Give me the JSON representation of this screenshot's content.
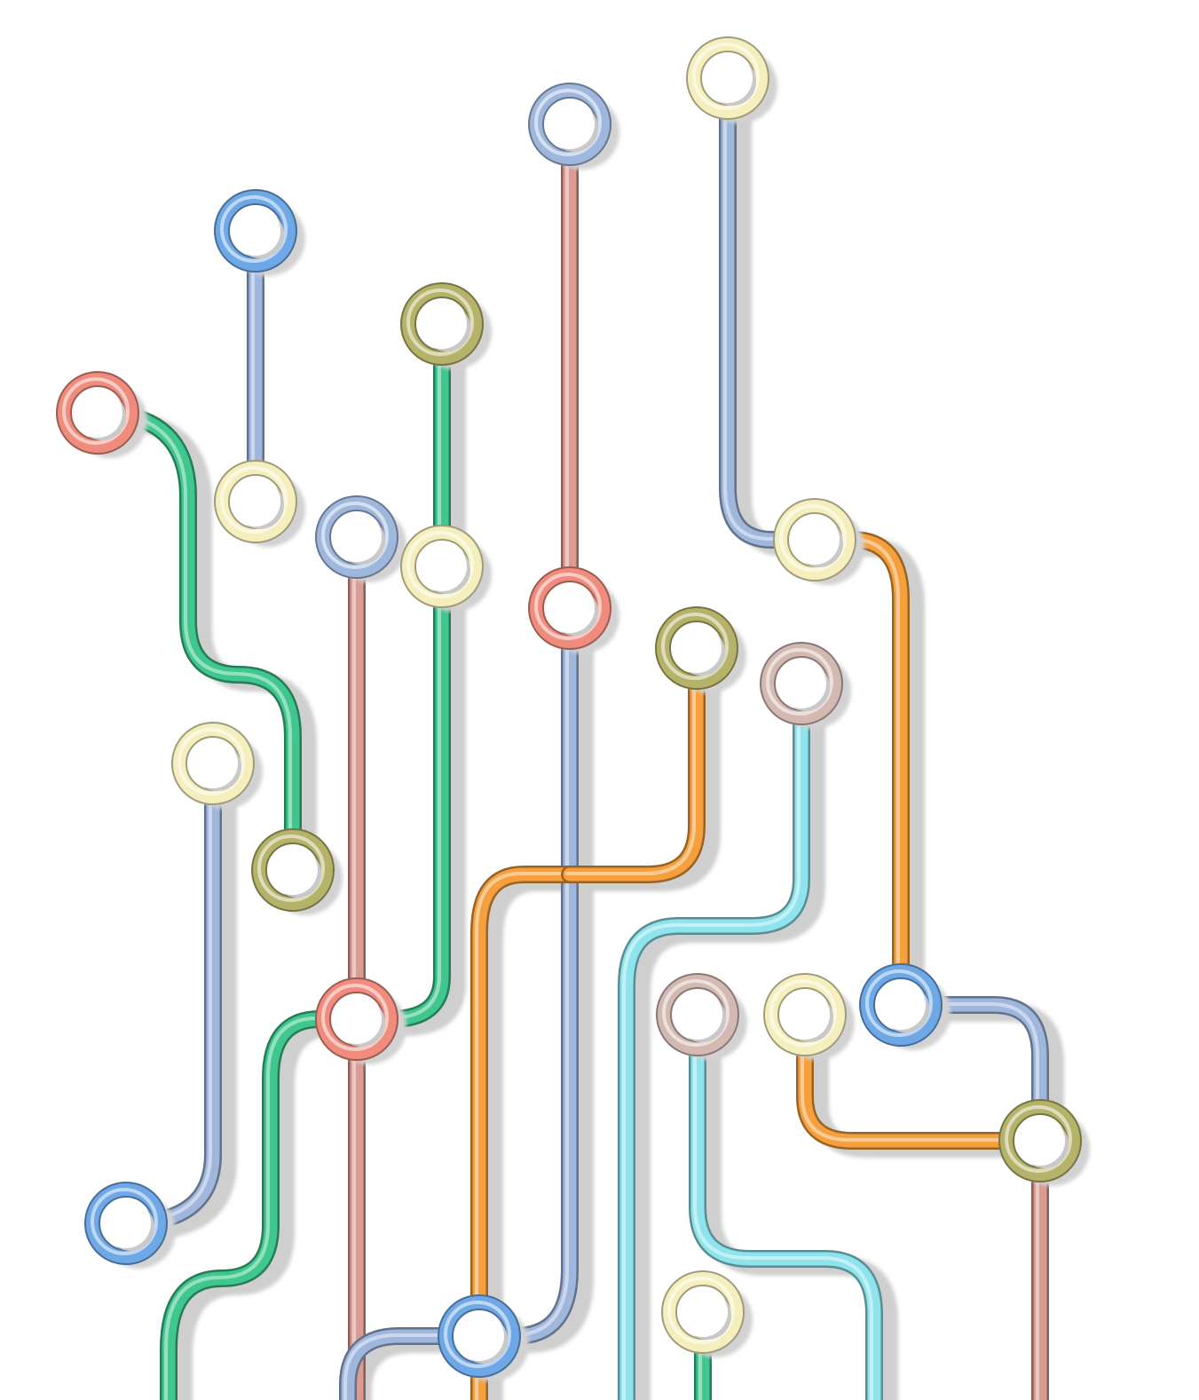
{
  "colors": {
    "green": "#3fc78e",
    "blue": "#9fb7dd",
    "pink": "#d99b92",
    "orange": "#f5a03c",
    "cyan": "#8fe3ec",
    "salmon": "#f08c7d",
    "cream": "#f5efbe",
    "olive": "#b5b269",
    "bright-blue": "#6fa8e6",
    "taupe": "#d2b9b2"
  },
  "lines": [
    {
      "name": "green-line-a",
      "color": "green"
    },
    {
      "name": "blue-line-a",
      "color": "blue"
    },
    {
      "name": "blue-line-b",
      "color": "blue"
    },
    {
      "name": "pink-line-a",
      "color": "pink"
    },
    {
      "name": "green-line-b",
      "color": "green"
    },
    {
      "name": "pink-line-b",
      "color": "pink"
    },
    {
      "name": "blue-line-c",
      "color": "blue"
    },
    {
      "name": "blue-line-d",
      "color": "blue"
    },
    {
      "name": "orange-line-a",
      "color": "orange"
    },
    {
      "name": "orange-line-b",
      "color": "orange"
    },
    {
      "name": "orange-line-c",
      "color": "orange"
    },
    {
      "name": "cyan-line-a",
      "color": "cyan"
    },
    {
      "name": "cyan-line-b",
      "color": "cyan"
    },
    {
      "name": "blue-line-e",
      "color": "blue"
    },
    {
      "name": "pink-line-c",
      "color": "pink"
    },
    {
      "name": "orange-line-d",
      "color": "orange"
    },
    {
      "name": "green-line-c",
      "color": "green"
    },
    {
      "name": "blue-line-f",
      "color": "blue"
    }
  ],
  "stations": [
    {
      "name": "salmon-station-1",
      "color": "salmon"
    },
    {
      "name": "bright-blue-station-1",
      "color": "bright-blue"
    },
    {
      "name": "cream-station-1",
      "color": "cream"
    },
    {
      "name": "olive-station-1",
      "color": "olive"
    },
    {
      "name": "blue-station-1",
      "color": "blue"
    },
    {
      "name": "cream-station-2",
      "color": "cream"
    },
    {
      "name": "blue-station-2",
      "color": "blue"
    },
    {
      "name": "salmon-station-2",
      "color": "salmon"
    },
    {
      "name": "cream-station-3",
      "color": "cream"
    },
    {
      "name": "cream-station-4",
      "color": "cream"
    },
    {
      "name": "olive-station-2",
      "color": "olive"
    },
    {
      "name": "taupe-station-1",
      "color": "taupe"
    },
    {
      "name": "cream-station-5",
      "color": "cream"
    },
    {
      "name": "olive-station-3",
      "color": "olive"
    },
    {
      "name": "salmon-station-3",
      "color": "salmon"
    },
    {
      "name": "taupe-station-2",
      "color": "taupe"
    },
    {
      "name": "cream-station-6",
      "color": "cream"
    },
    {
      "name": "bright-blue-station-2",
      "color": "bright-blue"
    },
    {
      "name": "olive-station-4",
      "color": "olive"
    },
    {
      "name": "bright-blue-station-3",
      "color": "bright-blue"
    },
    {
      "name": "cream-station-7",
      "color": "cream"
    },
    {
      "name": "bright-blue-station-4",
      "color": "bright-blue"
    }
  ]
}
